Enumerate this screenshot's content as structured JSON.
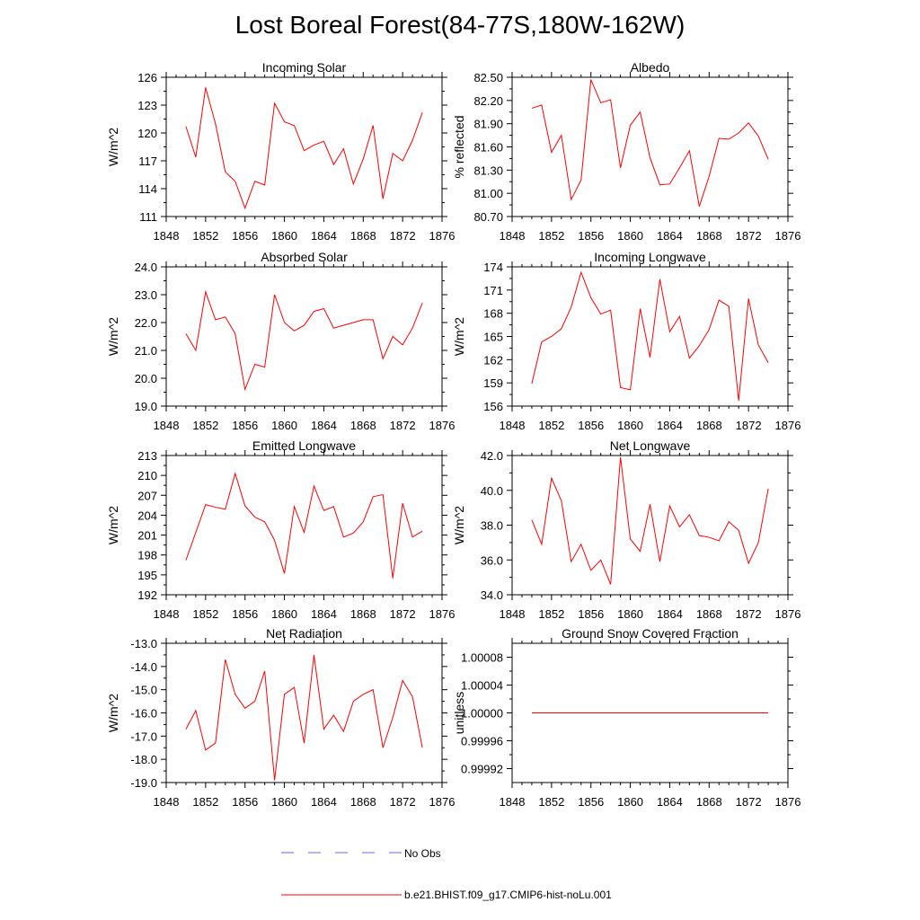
{
  "title": "Lost Boreal Forest(84-77S,180W-162W)",
  "legend": [
    {
      "label": "No Obs",
      "color": "#6a6ad8",
      "style": "dashed"
    },
    {
      "label": "b.e21.BHIST.f09_g17.CMIP6-hist-noLu.001",
      "color": "#ff0000",
      "style": "solid"
    }
  ],
  "chart_data": [
    {
      "type": "line",
      "title": "Incoming Solar",
      "ylabel": "W/m^2",
      "xlim": [
        1848,
        1876
      ],
      "xticks": [
        1848,
        1852,
        1856,
        1860,
        1864,
        1868,
        1872,
        1876
      ],
      "ylim": [
        111,
        126
      ],
      "yticks": [
        "111",
        "114",
        "117",
        "120",
        "123",
        "126"
      ],
      "x": [
        1850,
        1851,
        1852,
        1853,
        1854,
        1855,
        1856,
        1857,
        1858,
        1859,
        1860,
        1861,
        1862,
        1863,
        1864,
        1865,
        1866,
        1867,
        1868,
        1869,
        1870,
        1871,
        1872,
        1873,
        1874
      ],
      "series": [
        {
          "name": "b.e21.BHIST.f09_g17.CMIP6-hist-noLu.001",
          "values": [
            120.7,
            117.4,
            124.9,
            121.0,
            115.8,
            114.8,
            111.9,
            114.8,
            114.4,
            123.2,
            121.2,
            120.8,
            118.1,
            118.7,
            119.1,
            116.6,
            118.3,
            114.5,
            117.2,
            120.8,
            112.9,
            117.8,
            117.0,
            119.2,
            122.2
          ]
        }
      ]
    },
    {
      "type": "line",
      "title": "Albedo",
      "ylabel": "% reflected",
      "xlim": [
        1848,
        1876
      ],
      "xticks": [
        1848,
        1852,
        1856,
        1860,
        1864,
        1868,
        1872,
        1876
      ],
      "ylim": [
        80.7,
        82.5
      ],
      "yticks": [
        "80.70",
        "81.00",
        "81.30",
        "81.60",
        "81.90",
        "82.20",
        "82.50"
      ],
      "x": [
        1850,
        1851,
        1852,
        1853,
        1854,
        1855,
        1856,
        1857,
        1858,
        1859,
        1860,
        1861,
        1862,
        1863,
        1864,
        1865,
        1866,
        1867,
        1868,
        1869,
        1870,
        1871,
        1872,
        1873,
        1874
      ],
      "series": [
        {
          "name": "b.e21.BHIST.f09_g17.CMIP6-hist-noLu.001",
          "values": [
            82.1,
            82.14,
            81.53,
            81.75,
            80.92,
            81.17,
            82.47,
            82.17,
            82.21,
            81.33,
            81.88,
            82.05,
            81.46,
            81.11,
            81.12,
            81.33,
            81.55,
            80.83,
            81.22,
            81.71,
            81.7,
            81.78,
            81.91,
            81.74,
            81.44
          ]
        }
      ]
    },
    {
      "type": "line",
      "title": "Absorbed Solar",
      "ylabel": "W/m^2",
      "xlim": [
        1848,
        1876
      ],
      "xticks": [
        1848,
        1852,
        1856,
        1860,
        1864,
        1868,
        1872,
        1876
      ],
      "ylim": [
        19.0,
        24.0
      ],
      "yticks": [
        "19.0",
        "20.0",
        "21.0",
        "22.0",
        "23.0",
        "24.0"
      ],
      "x": [
        1850,
        1851,
        1852,
        1853,
        1854,
        1855,
        1856,
        1857,
        1858,
        1859,
        1860,
        1861,
        1862,
        1863,
        1864,
        1865,
        1866,
        1867,
        1868,
        1869,
        1870,
        1871,
        1872,
        1873,
        1874
      ],
      "series": [
        {
          "name": "b.e21.BHIST.f09_g17.CMIP6-hist-noLu.001",
          "values": [
            21.6,
            21.0,
            23.1,
            22.1,
            22.2,
            21.6,
            19.6,
            20.5,
            20.4,
            23.0,
            22.0,
            21.7,
            21.9,
            22.4,
            22.5,
            21.8,
            21.9,
            22.0,
            22.1,
            22.1,
            20.7,
            21.5,
            21.2,
            21.8,
            22.7
          ]
        }
      ]
    },
    {
      "type": "line",
      "title": "Incoming Longwave",
      "ylabel": "W/m^2",
      "xlim": [
        1848,
        1876
      ],
      "xticks": [
        1848,
        1852,
        1856,
        1860,
        1864,
        1868,
        1872,
        1876
      ],
      "ylim": [
        156,
        174
      ],
      "yticks": [
        "156",
        "159",
        "162",
        "165",
        "168",
        "171",
        "174"
      ],
      "x": [
        1850,
        1851,
        1852,
        1853,
        1854,
        1855,
        1856,
        1857,
        1858,
        1859,
        1860,
        1861,
        1862,
        1863,
        1864,
        1865,
        1866,
        1867,
        1868,
        1869,
        1870,
        1871,
        1872,
        1873,
        1874
      ],
      "series": [
        {
          "name": "b.e21.BHIST.f09_g17.CMIP6-hist-noLu.001",
          "values": [
            158.9,
            164.3,
            165.0,
            166.0,
            168.8,
            173.3,
            170.0,
            167.9,
            168.4,
            158.4,
            158.1,
            168.6,
            162.3,
            172.4,
            165.6,
            167.6,
            162.2,
            163.8,
            165.9,
            169.7,
            168.9,
            156.7,
            169.9,
            163.9,
            161.6
          ]
        }
      ]
    },
    {
      "type": "line",
      "title": "Emitted Longwave",
      "ylabel": "W/m^2",
      "xlim": [
        1848,
        1876
      ],
      "xticks": [
        1848,
        1852,
        1856,
        1860,
        1864,
        1868,
        1872,
        1876
      ],
      "ylim": [
        192,
        213
      ],
      "yticks": [
        "192",
        "195",
        "198",
        "201",
        "204",
        "207",
        "210",
        "213"
      ],
      "x": [
        1850,
        1851,
        1852,
        1853,
        1854,
        1855,
        1856,
        1857,
        1858,
        1859,
        1860,
        1861,
        1862,
        1863,
        1864,
        1865,
        1866,
        1867,
        1868,
        1869,
        1870,
        1871,
        1872,
        1873,
        1874
      ],
      "series": [
        {
          "name": "b.e21.BHIST.f09_g17.CMIP6-hist-noLu.001",
          "values": [
            197.2,
            201.4,
            205.6,
            205.2,
            204.9,
            210.3,
            205.4,
            203.7,
            203.0,
            200.2,
            195.2,
            205.3,
            201.4,
            208.4,
            204.7,
            205.3,
            200.7,
            201.3,
            203.0,
            206.8,
            207.1,
            194.5,
            205.8,
            200.7,
            201.6
          ]
        }
      ]
    },
    {
      "type": "line",
      "title": "Net Longwave",
      "ylabel": "W/m^2",
      "xlim": [
        1848,
        1876
      ],
      "xticks": [
        1848,
        1852,
        1856,
        1860,
        1864,
        1868,
        1872,
        1876
      ],
      "ylim": [
        34.0,
        42.0
      ],
      "yticks": [
        "34.0",
        "36.0",
        "38.0",
        "40.0",
        "42.0"
      ],
      "x": [
        1850,
        1851,
        1852,
        1853,
        1854,
        1855,
        1856,
        1857,
        1858,
        1859,
        1860,
        1861,
        1862,
        1863,
        1864,
        1865,
        1866,
        1867,
        1868,
        1869,
        1870,
        1871,
        1872,
        1873,
        1874
      ],
      "series": [
        {
          "name": "b.e21.BHIST.f09_g17.CMIP6-hist-noLu.001",
          "values": [
            38.3,
            36.9,
            40.7,
            39.4,
            35.9,
            36.9,
            35.4,
            36.0,
            34.6,
            41.9,
            37.2,
            36.5,
            39.2,
            35.9,
            39.1,
            37.9,
            38.6,
            37.4,
            37.3,
            37.1,
            38.2,
            37.7,
            35.8,
            37.0,
            40.1
          ]
        }
      ]
    },
    {
      "type": "line",
      "title": "Net Radiation",
      "ylabel": "W/m^2",
      "xlim": [
        1848,
        1876
      ],
      "xticks": [
        1848,
        1852,
        1856,
        1860,
        1864,
        1868,
        1872,
        1876
      ],
      "ylim": [
        -19.0,
        -13.0
      ],
      "yticks": [
        "-19.0",
        "-18.0",
        "-17.0",
        "-16.0",
        "-15.0",
        "-14.0",
        "-13.0"
      ],
      "x": [
        1850,
        1851,
        1852,
        1853,
        1854,
        1855,
        1856,
        1857,
        1858,
        1859,
        1860,
        1861,
        1862,
        1863,
        1864,
        1865,
        1866,
        1867,
        1868,
        1869,
        1870,
        1871,
        1872,
        1873,
        1874
      ],
      "series": [
        {
          "name": "b.e21.BHIST.f09_g17.CMIP6-hist-noLu.001",
          "values": [
            -16.7,
            -15.9,
            -17.6,
            -17.3,
            -13.7,
            -15.2,
            -15.8,
            -15.5,
            -14.2,
            -18.9,
            -15.2,
            -14.9,
            -17.3,
            -13.5,
            -16.7,
            -16.1,
            -16.8,
            -15.5,
            -15.2,
            -15.0,
            -17.5,
            -16.2,
            -14.6,
            -15.3,
            -17.5
          ]
        }
      ]
    },
    {
      "type": "line",
      "title": "Ground Snow Covered Fraction",
      "ylabel": "unitless",
      "xlim": [
        1848,
        1876
      ],
      "xticks": [
        1848,
        1852,
        1856,
        1860,
        1864,
        1868,
        1872,
        1876
      ],
      "ylim": [
        0.9999,
        1.0001
      ],
      "yticks": [
        "0.99992",
        "0.99996",
        "1.00000",
        "1.00004",
        "1.00008"
      ],
      "x": [
        1850,
        1851,
        1852,
        1853,
        1854,
        1855,
        1856,
        1857,
        1858,
        1859,
        1860,
        1861,
        1862,
        1863,
        1864,
        1865,
        1866,
        1867,
        1868,
        1869,
        1870,
        1871,
        1872,
        1873,
        1874
      ],
      "series": [
        {
          "name": "b.e21.BHIST.f09_g17.CMIP6-hist-noLu.001",
          "values": [
            1,
            1,
            1,
            1,
            1,
            1,
            1,
            1,
            1,
            1,
            1,
            1,
            1,
            1,
            1,
            1,
            1,
            1,
            1,
            1,
            1,
            1,
            1,
            1,
            1
          ]
        }
      ]
    }
  ]
}
